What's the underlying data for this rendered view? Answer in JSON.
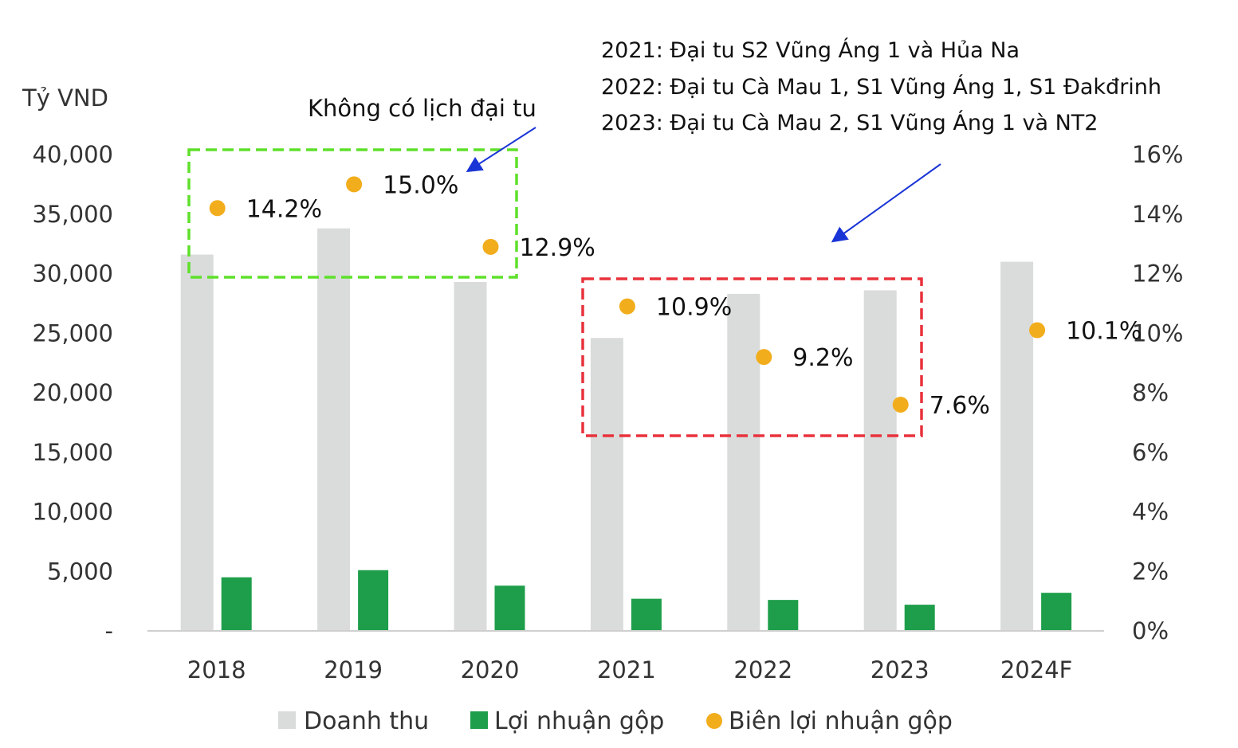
{
  "chart_data": {
    "type": "bar",
    "unit_label": "Tỷ VND",
    "categories": [
      "2018",
      "2019",
      "2020",
      "2021",
      "2022",
      "2023",
      "2024F"
    ],
    "series": [
      {
        "name": "Doanh thu",
        "type": "bar",
        "axis": "left",
        "color": "#d9dcda",
        "values": [
          31600,
          33800,
          29300,
          24600,
          28300,
          28600,
          31000
        ]
      },
      {
        "name": "Lợi nhuận gộp",
        "type": "bar",
        "axis": "left",
        "color": "#1e9e4a",
        "values": [
          4500,
          5100,
          3800,
          2700,
          2600,
          2200,
          3200
        ]
      },
      {
        "name": "Biên lợi nhuận gộp",
        "type": "scatter",
        "axis": "right",
        "color": "#f2ad1c",
        "values": [
          14.2,
          15.0,
          12.9,
          10.9,
          9.2,
          7.6,
          10.1
        ],
        "labels": [
          "14.2%",
          "15.0%",
          "12.9%",
          "10.9%",
          "9.2%",
          "7.6%",
          "10.1%"
        ]
      }
    ],
    "y_left": {
      "min": 0,
      "max": 40000,
      "ticks": [
        0,
        5000,
        10000,
        15000,
        20000,
        25000,
        30000,
        35000,
        40000
      ],
      "tick_labels": [
        "-",
        "5,000",
        "10,000",
        "15,000",
        "20,000",
        "25,000",
        "30,000",
        "35,000",
        "40,000"
      ]
    },
    "y_right": {
      "min": 0,
      "max": 16,
      "ticks": [
        0,
        2,
        4,
        6,
        8,
        10,
        12,
        14,
        16
      ],
      "tick_labels": [
        "0%",
        "2%",
        "4%",
        "6%",
        "8%",
        "10%",
        "12%",
        "14%",
        "16%"
      ]
    },
    "grid": false,
    "legend_position": "bottom",
    "annotations": {
      "green_box_label": "Không có lịch đại tu",
      "green_box_color": "#5ee02a",
      "red_box_color": "#e8323c",
      "arrow_color": "#1a35d6",
      "overhaul_notes": [
        "2021: Đại tu S2 Vũng Áng 1 và Hủa Na",
        "2022: Đại tu Cà Mau 1, S1 Vũng Áng 1, S1 Đakđrinh",
        "2023: Đại tu Cà Mau 2, S1 Vũng Áng 1 và NT2"
      ]
    }
  }
}
